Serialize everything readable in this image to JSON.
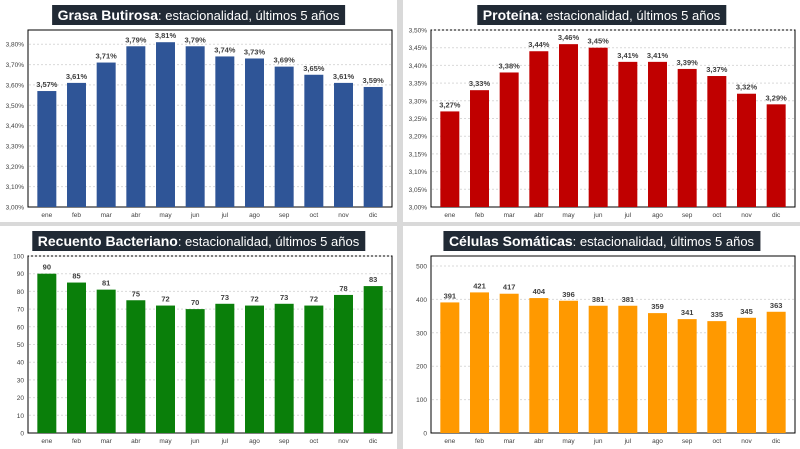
{
  "chart_data": [
    {
      "type": "bar",
      "title_bold": "Grasa Butirosa",
      "title_rest": ": estacionalidad, últimos 5 años",
      "color": "#2f5597",
      "categories": [
        "ene",
        "feb",
        "mar",
        "abr",
        "may",
        "jun",
        "jul",
        "ago",
        "sep",
        "oct",
        "nov",
        "dic"
      ],
      "values": [
        3.57,
        3.61,
        3.71,
        3.79,
        3.81,
        3.79,
        3.74,
        3.73,
        3.69,
        3.65,
        3.61,
        3.59
      ],
      "labels": [
        "3,57%",
        "3,61%",
        "3,71%",
        "3,79%",
        "3,81%",
        "3,79%",
        "3,74%",
        "3,73%",
        "3,69%",
        "3,65%",
        "3,61%",
        "3,59%"
      ],
      "yticks": [
        3.0,
        3.1,
        3.2,
        3.3,
        3.4,
        3.5,
        3.6,
        3.7,
        3.8
      ],
      "ytick_labels": [
        "3,00%",
        "3,10%",
        "3,20%",
        "3,30%",
        "3,40%",
        "3,50%",
        "3,60%",
        "3,70%",
        "3,80%"
      ],
      "ylim": [
        3.0,
        3.87
      ]
    },
    {
      "type": "bar",
      "title_bold": "Proteína",
      "title_rest": ": estacionalidad, últimos 5 años",
      "color": "#c00000",
      "categories": [
        "ene",
        "feb",
        "mar",
        "abr",
        "may",
        "jun",
        "jul",
        "ago",
        "sep",
        "oct",
        "nov",
        "dic"
      ],
      "values": [
        3.27,
        3.33,
        3.38,
        3.44,
        3.46,
        3.45,
        3.41,
        3.41,
        3.39,
        3.37,
        3.32,
        3.29
      ],
      "labels": [
        "3,27%",
        "3,33%",
        "3,38%",
        "3,44%",
        "3,46%",
        "3,45%",
        "3,41%",
        "3,41%",
        "3,39%",
        "3,37%",
        "3,32%",
        "3,29%"
      ],
      "yticks": [
        3.0,
        3.05,
        3.1,
        3.15,
        3.2,
        3.25,
        3.3,
        3.35,
        3.4,
        3.45,
        3.5
      ],
      "ytick_labels": [
        "3,00%",
        "3,05%",
        "3,10%",
        "3,15%",
        "3,20%",
        "3,25%",
        "3,30%",
        "3,35%",
        "3,40%",
        "3,45%",
        "3,50%"
      ],
      "ylim": [
        3.0,
        3.5
      ]
    },
    {
      "type": "bar",
      "title_bold": "Recuento Bacteriano",
      "title_rest": ": estacionalidad, últimos 5 años",
      "color": "#0a7f0a",
      "categories": [
        "ene",
        "feb",
        "mar",
        "abr",
        "may",
        "jun",
        "jul",
        "ago",
        "sep",
        "oct",
        "nov",
        "dic"
      ],
      "values": [
        90,
        85,
        81,
        75,
        72,
        70,
        73,
        72,
        73,
        72,
        78,
        83
      ],
      "labels": [
        "90",
        "85",
        "81",
        "75",
        "72",
        "70",
        "73",
        "72",
        "73",
        "72",
        "78",
        "83"
      ],
      "yticks": [
        0,
        10,
        20,
        30,
        40,
        50,
        60,
        70,
        80,
        90,
        100
      ],
      "ytick_labels": [
        "0",
        "10",
        "20",
        "30",
        "40",
        "50",
        "60",
        "70",
        "80",
        "90",
        "100"
      ],
      "ylim": [
        0,
        100
      ]
    },
    {
      "type": "bar",
      "title_bold": "Células Somáticas",
      "title_rest": ": estacionalidad, últimos 5 años",
      "color": "#ff9900",
      "categories": [
        "ene",
        "feb",
        "mar",
        "abr",
        "may",
        "jun",
        "jul",
        "ago",
        "sep",
        "oct",
        "nov",
        "dic"
      ],
      "values": [
        391,
        421,
        417,
        404,
        396,
        381,
        381,
        359,
        341,
        335,
        345,
        363
      ],
      "labels": [
        "391",
        "421",
        "417",
        "404",
        "396",
        "381",
        "381",
        "359",
        "341",
        "335",
        "345",
        "363"
      ],
      "yticks": [
        0,
        100,
        200,
        300,
        400,
        500
      ],
      "ytick_labels": [
        "0",
        "100",
        "200",
        "300",
        "400",
        "500"
      ],
      "ylim": [
        0,
        530
      ]
    }
  ]
}
